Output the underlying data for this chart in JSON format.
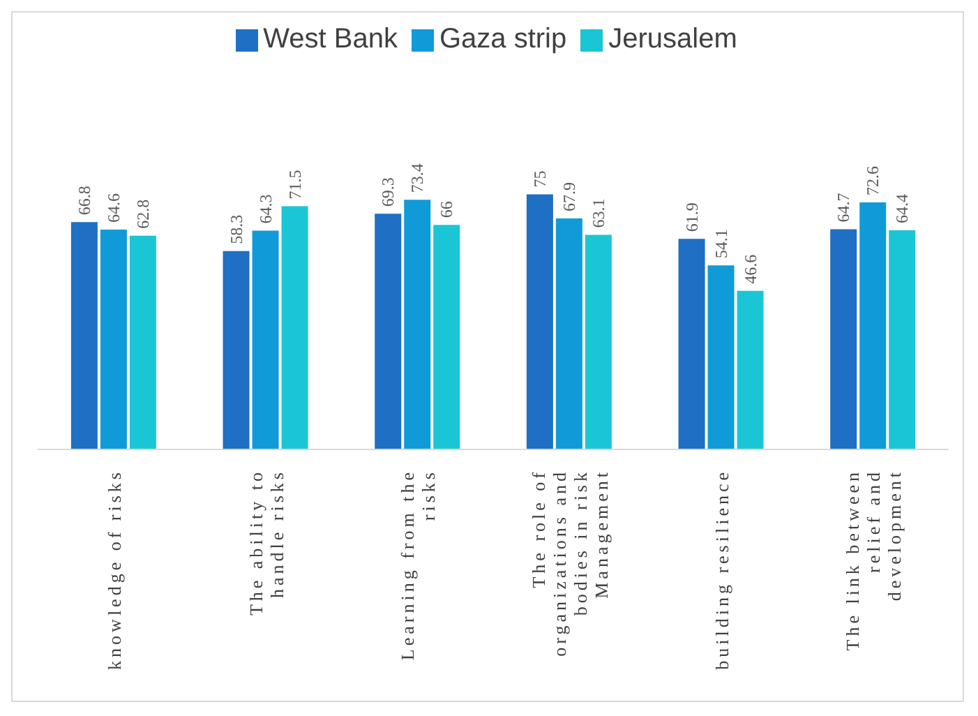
{
  "chart_data": {
    "type": "bar",
    "categories": [
      "knowledge of risks",
      "The ability to handle risks",
      "Learning from the risks",
      "The role of organizations and bodies in risk Management",
      "building resilience",
      "The link between relief and development"
    ],
    "series": [
      {
        "name": "West Bank",
        "color": "#1f6fc4",
        "values": [
          66.8,
          58.3,
          69.3,
          75,
          61.9,
          64.7
        ]
      },
      {
        "name": "Gaza strip",
        "color": "#109bd8",
        "values": [
          64.6,
          64.3,
          73.4,
          67.9,
          54.1,
          72.6
        ]
      },
      {
        "name": "Jerusalem",
        "color": "#1ac6d6",
        "values": [
          62.8,
          71.5,
          66,
          63.1,
          46.6,
          64.4
        ]
      }
    ],
    "tick_labels": "x",
    "data_labels": true,
    "legend": "top",
    "grid": false
  }
}
